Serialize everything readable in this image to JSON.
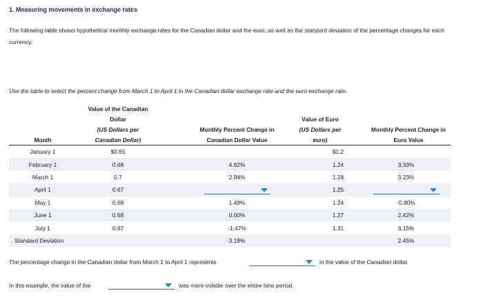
{
  "title": "1. Measuring movements in exchange rates",
  "intro": "The following table shows hypothetical monthly exchange rates for the Canadian dollar and the euro, as well as the standard deviation of the percentage changes for each currency.",
  "instruction": "Use the table to select the percent change from March 1 to April 1 in the Canadian dollar exchange rate and the euro exchange rate.",
  "table": {
    "headers": {
      "month": "Month",
      "cad_value_line1": "Value of the Canadian",
      "cad_value_line2": "Dollar",
      "cad_value_line3": "(US Dollars per",
      "cad_value_line4": "Canadian Dollar)",
      "cad_change_line1": "Monthly Percent Change in",
      "cad_change_line2": "Canadian Dollar Value",
      "euro_value_line1": "Value of Euro",
      "euro_value_line2": "(US Dollars per",
      "euro_value_line3": "euro)",
      "euro_change_line1": "Monthly Percent Change in",
      "euro_change_line2": "Euro Value"
    },
    "rows": [
      {
        "month": "January 1",
        "cad": "$0.65",
        "cad_change": "",
        "euro": "$1.2",
        "euro_change": ""
      },
      {
        "month": "February 1",
        "cad": "0.68",
        "cad_change": "4.62%",
        "euro": "1.24",
        "euro_change": "3.33%"
      },
      {
        "month": "March 1",
        "cad": "0.7",
        "cad_change": "2.94%",
        "euro": "1.28",
        "euro_change": "3.23%"
      },
      {
        "month": "April 1",
        "cad": "0.67",
        "cad_change": "",
        "euro": "1.25",
        "euro_change": ""
      },
      {
        "month": "May 1",
        "cad": "0.68",
        "cad_change": "1.49%",
        "euro": "1.24",
        "euro_change": "-0.80%"
      },
      {
        "month": "June 1",
        "cad": "0.68",
        "cad_change": "0.00%",
        "euro": "1.27",
        "euro_change": "2.42%"
      },
      {
        "month": "July 1",
        "cad": "0.67",
        "cad_change": "-1.47%",
        "euro": "1.31",
        "euro_change": "3.15%"
      }
    ],
    "std_dev": {
      "label": "Standard Deviation",
      "cad_change": "3.19%",
      "euro_change": "2.45%"
    }
  },
  "sentence1": {
    "before": "The percentage change in the Canadian dollar from March 1 to April 1 represents",
    "after": "in the value of the Canadian dollar."
  },
  "sentence2": {
    "before": "In this example, the value of the",
    "after": "was more volatile over the entire time period."
  }
}
